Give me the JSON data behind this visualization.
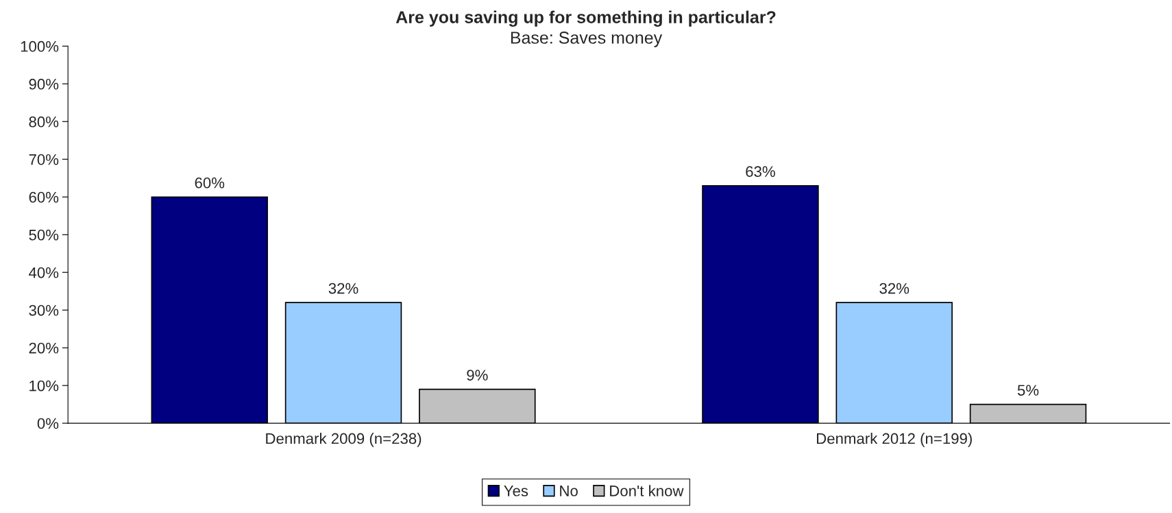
{
  "chart_data": {
    "type": "bar",
    "title": "Are you saving up for something in particular?",
    "subtitle": "Base: Saves money",
    "categories": [
      "Denmark 2009 (n=238)",
      "Denmark 2012 (n=199)"
    ],
    "series": [
      {
        "name": "Yes",
        "color": "#000080",
        "values": [
          60,
          63
        ],
        "value_labels": [
          "60%",
          "63%"
        ]
      },
      {
        "name": "No",
        "color": "#99ccff",
        "values": [
          32,
          32
        ],
        "value_labels": [
          "32%",
          "32%"
        ]
      },
      {
        "name": "Don't know",
        "color": "#c0c0c0",
        "values": [
          9,
          5
        ],
        "value_labels": [
          "9%",
          "5%"
        ]
      }
    ],
    "ylim": [
      0,
      100
    ],
    "yticks": [
      {
        "value": 0,
        "label": "0%"
      },
      {
        "value": 10,
        "label": "10%"
      },
      {
        "value": 20,
        "label": "20%"
      },
      {
        "value": 30,
        "label": "30%"
      },
      {
        "value": 40,
        "label": "40%"
      },
      {
        "value": 50,
        "label": "50%"
      },
      {
        "value": 60,
        "label": "60%"
      },
      {
        "value": 70,
        "label": "70%"
      },
      {
        "value": 80,
        "label": "80%"
      },
      {
        "value": 90,
        "label": "90%"
      },
      {
        "value": 100,
        "label": "100%"
      }
    ],
    "grid": false,
    "legend": "bottom"
  }
}
